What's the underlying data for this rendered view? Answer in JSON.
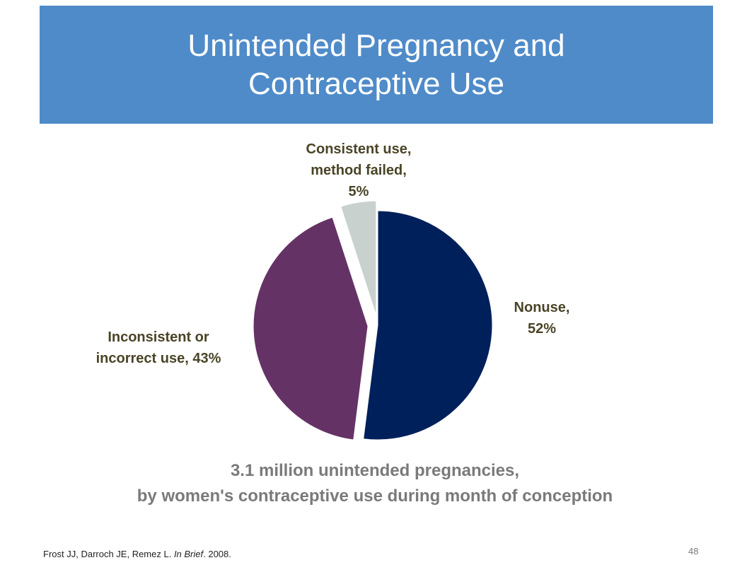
{
  "slide": {
    "title_lines": [
      "Unintended Pregnancy and",
      "Contraceptive Use"
    ],
    "caption_lines": [
      "3.1 million unintended pregnancies,",
      "by women's contraceptive use during month of conception"
    ],
    "citation": {
      "authors": "Frost JJ, Darroch JE, Remez L. ",
      "journal": "In Brief",
      "year": ". 2008."
    },
    "page_number": "48",
    "colors": {
      "title_bar": "#4f8bc9",
      "label_text": "#4a4426",
      "caption_text": "#7a7a7a"
    }
  },
  "chart_data": {
    "type": "pie",
    "slices": [
      {
        "label_lines": [
          "Nonuse,",
          "52%"
        ],
        "value": 52,
        "color": "#00205b",
        "exploded": false
      },
      {
        "label_lines": [
          "Inconsistent or",
          "incorrect use, 43%"
        ],
        "value": 43,
        "color": "#653266",
        "exploded": true
      },
      {
        "label_lines": [
          "Consistent use,",
          "method failed,",
          "5%"
        ],
        "value": 5,
        "color": "#c9d1cf",
        "exploded": true
      }
    ],
    "start": "12 o'clock",
    "direction": "clockwise",
    "legend": "none"
  }
}
